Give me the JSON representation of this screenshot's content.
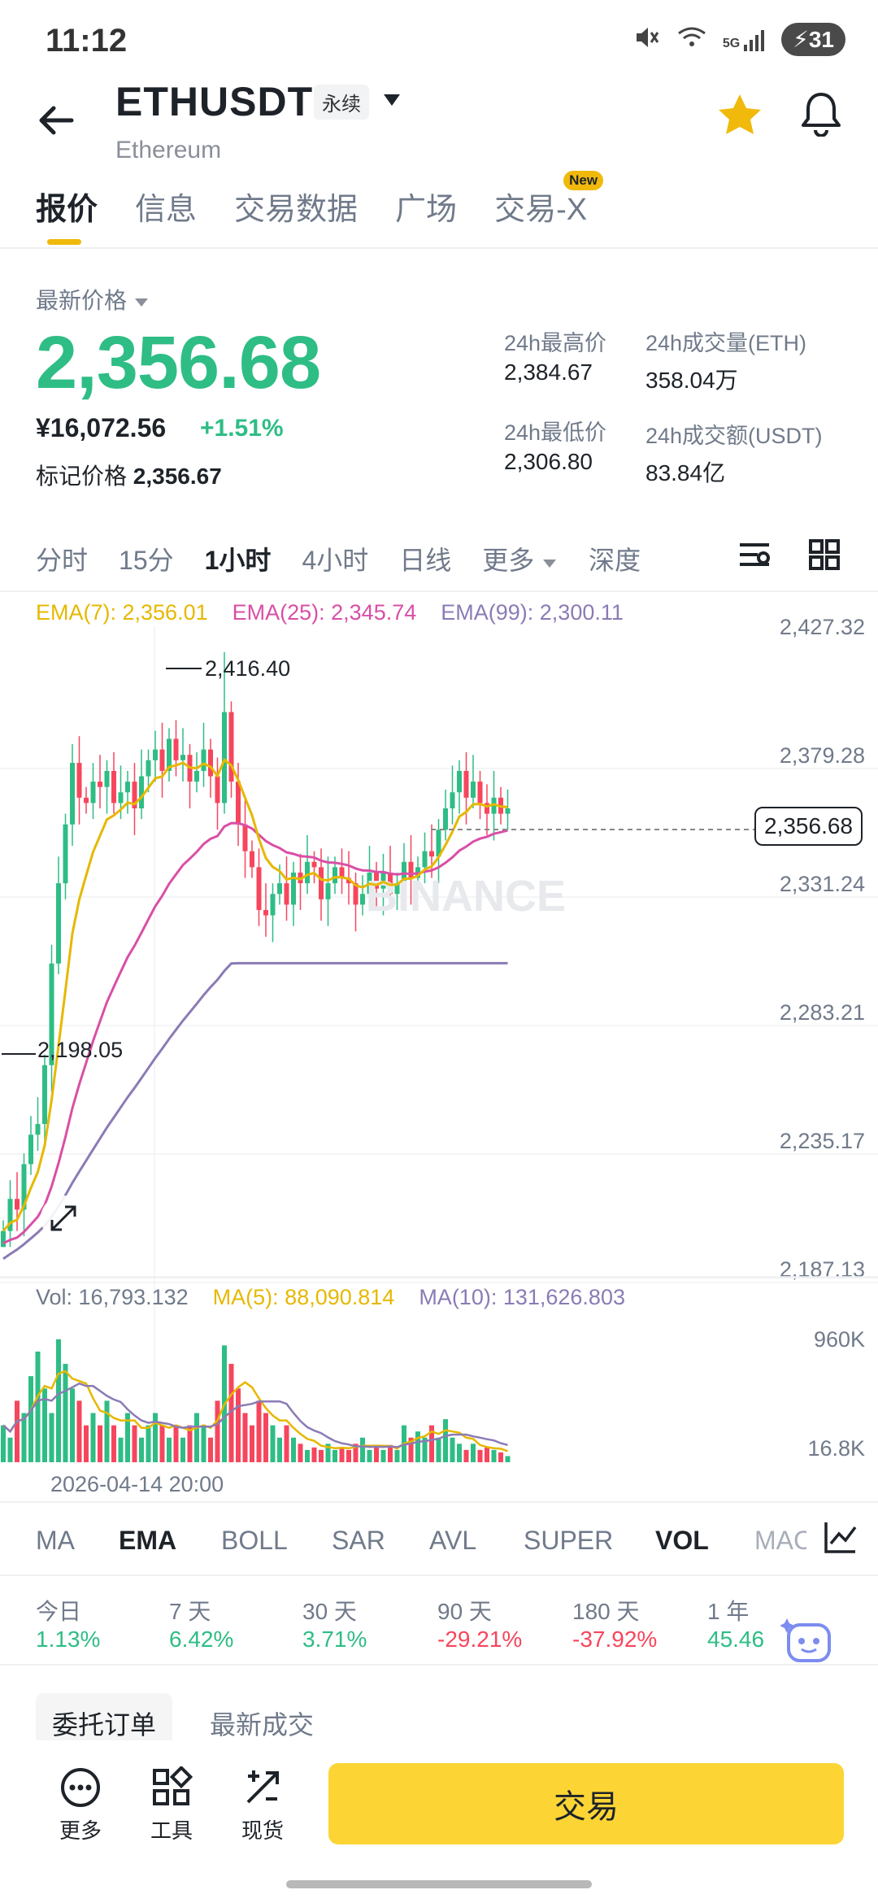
{
  "status_bar": {
    "time": "11:12",
    "signal_label": "5G",
    "battery": "31"
  },
  "header": {
    "symbol": "ETHUSDT",
    "contract_type": "永续",
    "name": "Ethereum"
  },
  "tabs": [
    {
      "label": "报价"
    },
    {
      "label": "信息"
    },
    {
      "label": "交易数据"
    },
    {
      "label": "广场"
    },
    {
      "label": "交易-X"
    }
  ],
  "new_badge": "New",
  "price": {
    "latest_label": "最新价格",
    "last": "2,356.68",
    "cny": "¥16,072.56",
    "change": "+1.51%",
    "mark_label": "标记价格",
    "mark_value": "2,356.67"
  },
  "stats": {
    "high_label": "24h最高价",
    "high": "2,384.67",
    "low_label": "24h最低价",
    "low": "2,306.80",
    "vol_eth_label": "24h成交量(ETH)",
    "vol_eth": "358.04万",
    "vol_usdt_label": "24h成交额(USDT)",
    "vol_usdt": "83.84亿"
  },
  "timeframes": [
    {
      "label": "分时"
    },
    {
      "label": "15分"
    },
    {
      "label": "1小时"
    },
    {
      "label": "4小时"
    },
    {
      "label": "日线"
    },
    {
      "label": "更多"
    },
    {
      "label": "深度"
    }
  ],
  "ema_legend": {
    "ema7": "EMA(7): 2,356.01",
    "ema25": "EMA(25): 2,345.74",
    "ema99": "EMA(99): 2,300.11"
  },
  "price_axis": [
    "2,427.32",
    "2,379.28",
    "2,331.24",
    "2,283.21",
    "2,235.17",
    "2,187.13"
  ],
  "current_price_tag": "2,356.68",
  "high_marker": "2,416.40",
  "low_marker": "2,198.05",
  "watermark": "BINANCE",
  "vol_legend": {
    "vol": "Vol: 16,793.132",
    "ma5": "MA(5): 88,090.814",
    "ma10": "MA(10): 131,626.803"
  },
  "vol_axis": [
    "960K",
    "16.8K"
  ],
  "date_label": "2026-04-14 20:00",
  "indicators": [
    {
      "label": "MA"
    },
    {
      "label": "EMA"
    },
    {
      "label": "BOLL"
    },
    {
      "label": "SAR"
    },
    {
      "label": "AVL"
    },
    {
      "label": "SUPER"
    },
    {
      "label": "VOL"
    },
    {
      "label": "MAC"
    }
  ],
  "performance": [
    {
      "label": "今日",
      "value": "1.13%"
    },
    {
      "label": "7 天",
      "value": "6.42%"
    },
    {
      "label": "30 天",
      "value": "3.71%"
    },
    {
      "label": "90 天",
      "value": "-29.21%"
    },
    {
      "label": "180 天",
      "value": "-37.92%"
    },
    {
      "label": "1 年",
      "value": "45.46"
    }
  ],
  "bottom_tabs": {
    "orders": "委托订单",
    "trades": "最新成交"
  },
  "bottom_bar": {
    "more": "更多",
    "tools": "工具",
    "spot": "现货",
    "trade": "交易"
  },
  "colors": {
    "up": "#2ebd85",
    "down": "#f6465d",
    "accent": "#fcd535",
    "ema7": "#e6b800",
    "ema25": "#d94fa6",
    "ema99": "#8b7bb5"
  },
  "chart_data": {
    "type": "candlestick",
    "y_range": [
      2187.13,
      2427.32
    ],
    "y_ticks": [
      "2,427.32",
      "2,379.28",
      "2,331.24",
      "2,283.21",
      "2,235.17",
      "2,187.13"
    ],
    "high": 2416.4,
    "low": 2198.05,
    "last": 2356.68,
    "series": [
      {
        "name": "EMA(7)",
        "last": 2356.01
      },
      {
        "name": "EMA(25)",
        "last": 2345.74
      },
      {
        "name": "EMA(99)",
        "last": 2300.11
      }
    ],
    "volume_axis": [
      "960K",
      "16.8K"
    ],
    "x_label": "2026-04-14 20:00"
  }
}
